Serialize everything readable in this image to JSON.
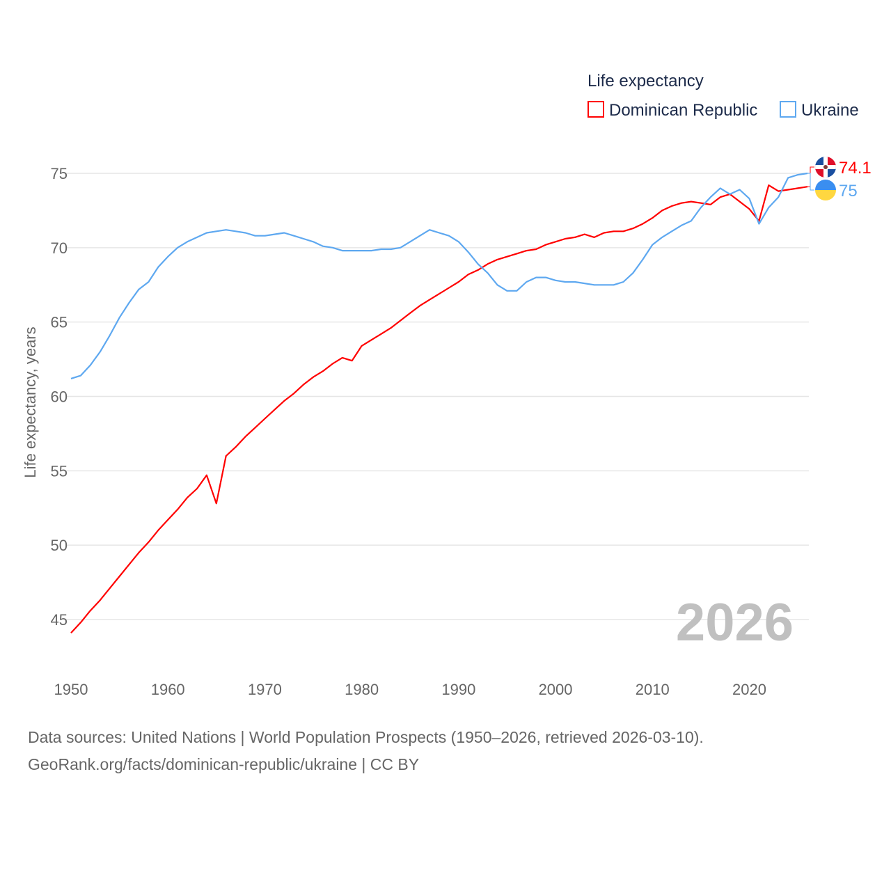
{
  "chart_data": {
    "type": "line",
    "ylabel": "Life expectancy, years",
    "xlabel": "",
    "legend_title": "Life expectancy",
    "legend_placement": "top-right",
    "year_watermark": "2026",
    "xlim": [
      1950,
      2026
    ],
    "ylim": [
      45,
      75
    ],
    "xticks": [
      "1950",
      "1960",
      "1970",
      "1980",
      "1990",
      "2000",
      "2010",
      "2020"
    ],
    "yticks": [
      "45",
      "50",
      "55",
      "60",
      "65",
      "70",
      "75"
    ],
    "grid": true,
    "x_start": 1950,
    "series": [
      {
        "name": "Dominican Republic",
        "color": "#ff0000",
        "end_label": "74.1",
        "flag": "dominican-republic-flag",
        "values": [
          44.1,
          44.8,
          45.6,
          46.3,
          47.1,
          47.9,
          48.7,
          49.5,
          50.2,
          51.0,
          51.7,
          52.4,
          53.2,
          53.8,
          54.7,
          52.8,
          56.0,
          56.6,
          57.3,
          57.9,
          58.5,
          59.1,
          59.7,
          60.2,
          60.8,
          61.3,
          61.7,
          62.2,
          62.6,
          62.4,
          63.4,
          63.8,
          64.2,
          64.6,
          65.1,
          65.6,
          66.1,
          66.5,
          66.9,
          67.3,
          67.7,
          68.2,
          68.5,
          68.9,
          69.2,
          69.4,
          69.6,
          69.8,
          69.9,
          70.2,
          70.4,
          70.6,
          70.7,
          70.9,
          70.7,
          71.0,
          71.1,
          71.1,
          71.3,
          71.6,
          72.0,
          72.5,
          72.8,
          73.0,
          73.1,
          73.0,
          72.9,
          73.4,
          73.6,
          73.1,
          72.6,
          71.8,
          74.2,
          73.8,
          73.9,
          74.0,
          74.1
        ]
      },
      {
        "name": "Ukraine",
        "color": "#5ea8f0",
        "end_label": "75",
        "flag": "ukraine-flag",
        "values": [
          61.2,
          61.4,
          62.1,
          63.0,
          64.1,
          65.3,
          66.3,
          67.2,
          67.7,
          68.7,
          69.4,
          70.0,
          70.4,
          70.7,
          71.0,
          71.1,
          71.2,
          71.1,
          71.0,
          70.8,
          70.8,
          70.9,
          71.0,
          70.8,
          70.6,
          70.4,
          70.1,
          70.0,
          69.8,
          69.8,
          69.8,
          69.8,
          69.9,
          69.9,
          70.0,
          70.4,
          70.8,
          71.2,
          71.0,
          70.8,
          70.4,
          69.7,
          68.9,
          68.3,
          67.5,
          67.1,
          67.1,
          67.7,
          68.0,
          68.0,
          67.8,
          67.7,
          67.7,
          67.6,
          67.5,
          67.5,
          67.5,
          67.7,
          68.3,
          69.2,
          70.2,
          70.7,
          71.1,
          71.5,
          71.8,
          72.7,
          73.4,
          74.0,
          73.6,
          73.9,
          73.3,
          71.6,
          72.7,
          73.4,
          74.7,
          74.9,
          75.0
        ]
      }
    ]
  },
  "footer": {
    "line1": "Data sources: United Nations | World Population Prospects (1950–2026, retrieved 2026-03-10).",
    "line2": "GeoRank.org/facts/dominican-republic/ukraine | CC BY"
  }
}
